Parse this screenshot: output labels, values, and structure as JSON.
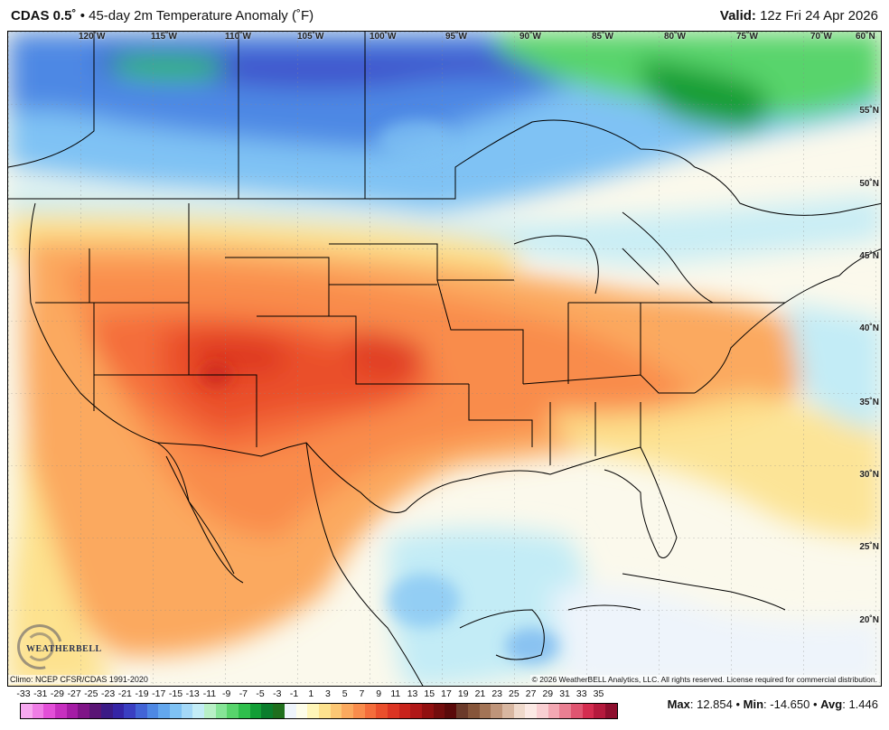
{
  "header": {
    "title_bold": "CDAS 0.5˚",
    "title_rest": " • 45-day 2m Temperature Anomaly (˚F)",
    "valid_label": "Valid:",
    "valid_value": " 12z Fri 24 Apr 2026"
  },
  "map": {
    "longitude_labels": [
      "120˚W",
      "115˚W",
      "110˚W",
      "105˚W",
      "100˚W",
      "95˚W",
      "90˚W",
      "85˚W",
      "80˚W",
      "75˚W",
      "70˚W",
      "60˚N"
    ],
    "latitude_labels": [
      "55˚N",
      "50˚N",
      "45˚N",
      "40˚N",
      "35˚N",
      "30˚N",
      "25˚N",
      "20˚N"
    ],
    "logo_text": "WEATHERBELL",
    "climo_text": "Climo: NCEP CFSR/CDAS 1991-2020",
    "copyright_text": "© 2026 WeatherBELL Analytics, LLC. All rights reserved. License required for commercial distribution."
  },
  "colorbar": {
    "labels": [
      "-33",
      "-31",
      "-29",
      "-27",
      "-25",
      "-23",
      "-21",
      "-19",
      "-17",
      "-15",
      "-13",
      "-11",
      "-9",
      "-7",
      "-5",
      "-3",
      "-1",
      "1",
      "3",
      "5",
      "7",
      "9",
      "11",
      "13",
      "15",
      "17",
      "19",
      "21",
      "23",
      "25",
      "27",
      "29",
      "31",
      "33",
      "35"
    ],
    "colors": [
      "#f7a8f0",
      "#ef7de6",
      "#e34fd8",
      "#c72fc0",
      "#a51ca5",
      "#7f1487",
      "#5a1575",
      "#3b1b86",
      "#3525a6",
      "#3a3fc2",
      "#4264d6",
      "#4e88e4",
      "#63a7ee",
      "#7fc2f4",
      "#a4d8f7",
      "#c3ecf6",
      "#b8f0c6",
      "#86e597",
      "#58d46c",
      "#2fbf4c",
      "#129e36",
      "#0b7d2c",
      "#1f6f1d",
      "#eef4fb",
      "#fdfde9",
      "#fff6b8",
      "#fde28e",
      "#fcc774",
      "#fba95e",
      "#f98c4c",
      "#f46d3b",
      "#ea4f2c",
      "#dc3523",
      "#c8231b",
      "#b01717",
      "#911010",
      "#730d0d",
      "#5a0a0a",
      "#6b3a2a",
      "#86553a",
      "#a37456",
      "#bf957a",
      "#d8b7a1",
      "#efd9cb",
      "#fbe9e4",
      "#f9cfd2",
      "#f3a8b3",
      "#ea7f92",
      "#e05571",
      "#d42c4f",
      "#b51a3d",
      "#8e0f2e"
    ]
  },
  "stats": {
    "max_label": "Max",
    "max_value": "12.854",
    "min_label": "Min",
    "min_value": "-14.650",
    "avg_label": "Avg",
    "avg_value": "1.446",
    "separator": " • "
  }
}
